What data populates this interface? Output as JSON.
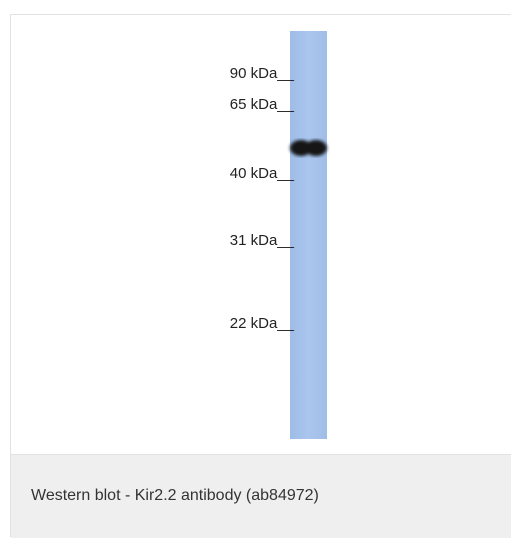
{
  "figure": {
    "markers": [
      "90 kDa__",
      "65 kDa__",
      "40 kDa__",
      "31 kDa__",
      "22 kDa__"
    ]
  },
  "caption": "Western blot - Kir2.2 antibody (ab84972)"
}
